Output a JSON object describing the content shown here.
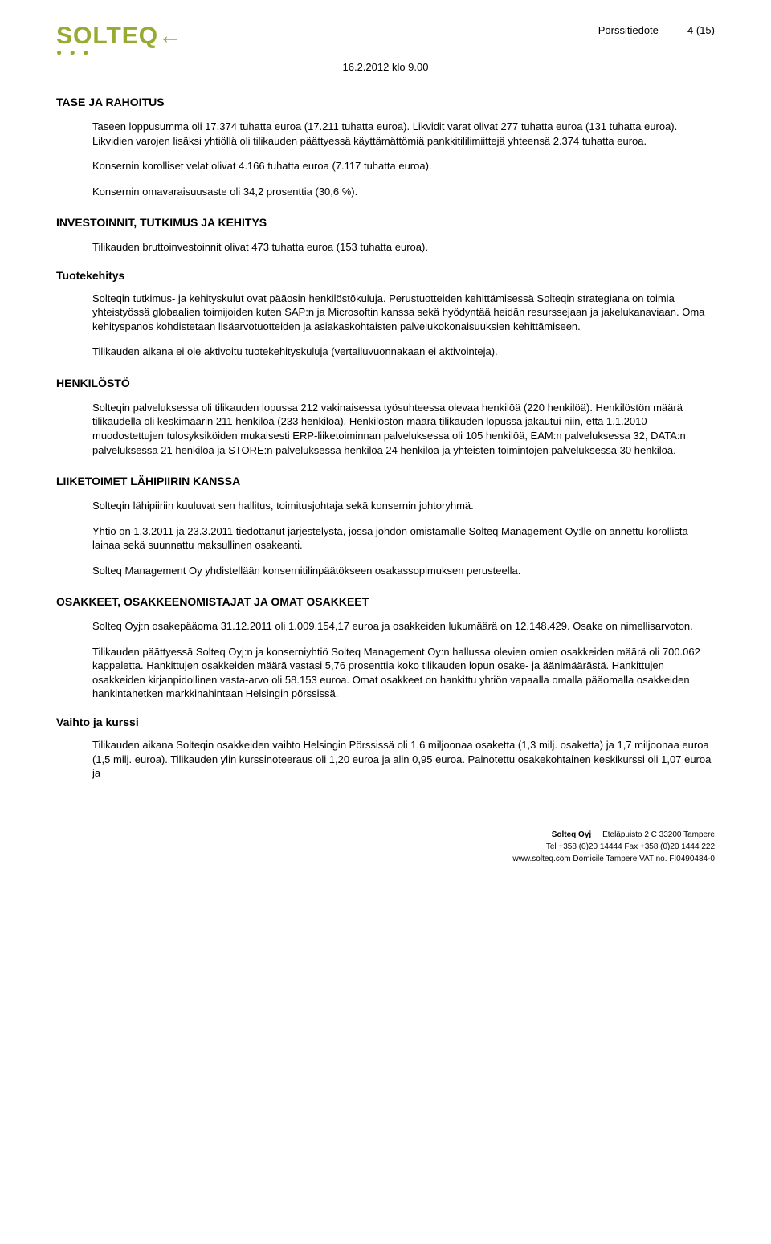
{
  "header": {
    "logo_text": "SOLTEQ",
    "logo_accent": "←",
    "doc_type": "Pörssitiedote",
    "page_num": "4 (15)",
    "datetime": "16.2.2012 klo 9.00"
  },
  "sections": {
    "tase": {
      "heading": "TASE JA RAHOITUS",
      "p1": "Taseen loppusumma oli 17.374 tuhatta euroa (17.211 tuhatta euroa). Likvidit varat olivat 277 tuhatta euroa (131 tuhatta euroa). Likvidien varojen lisäksi yhtiöllä oli tilikauden päättyessä käyttämättömiä pankkitililimiittejä yhteensä 2.374 tuhatta euroa.",
      "p2": "Konsernin korolliset velat olivat 4.166 tuhatta euroa (7.117 tuhatta euroa).",
      "p3": "Konsernin omavaraisuusaste oli 34,2 prosenttia (30,6 %)."
    },
    "investoinnit": {
      "heading": "INVESTOINNIT, TUTKIMUS JA KEHITYS",
      "p1": "Tilikauden bruttoinvestoinnit olivat 473 tuhatta euroa (153 tuhatta euroa)."
    },
    "tuotekehitys": {
      "heading": "Tuotekehitys",
      "p1": "Solteqin tutkimus- ja kehityskulut ovat pääosin henkilöstökuluja. Perustuotteiden kehittämisessä Solteqin strategiana on toimia yhteistyössä globaalien toimijoiden kuten SAP:n ja Microsoftin kanssa sekä hyödyntää heidän resurssejaan ja jakelukanaviaan. Oma kehityspanos kohdistetaan lisäarvotuotteiden ja asiakaskohtaisten palvelukokonaisuuksien kehittämiseen.",
      "p2": "Tilikauden aikana ei ole aktivoitu tuotekehityskuluja (vertailuvuonnakaan ei aktivointeja)."
    },
    "henkilosto": {
      "heading": "HENKILÖSTÖ",
      "p1": "Solteqin palveluksessa oli tilikauden lopussa 212 vakinaisessa työsuhteessa olevaa henkilöä (220 henkilöä). Henkilöstön määrä tilikaudella oli keskimäärin 211 henkilöä (233 henkilöä). Henkilöstön määrä tilikauden lopussa jakautui niin, että 1.1.2010 muodostettujen tulosyksiköiden mukaisesti ERP-liiketoiminnan palveluksessa oli 105 henkilöä, EAM:n palveluksessa 32, DATA:n palveluksessa 21 henkilöä ja STORE:n palveluksessa henkilöä 24 henkilöä ja yhteisten toimintojen palveluksessa 30 henkilöä."
    },
    "liiketoimet": {
      "heading": "LIIKETOIMET LÄHIPIIRIN KANSSA",
      "p1": "Solteqin lähipiiriin kuuluvat sen hallitus, toimitusjohtaja sekä konsernin johtoryhmä.",
      "p2": "Yhtiö on 1.3.2011 ja 23.3.2011 tiedottanut järjestelystä, jossa johdon omistamalle Solteq Management Oy:lle on annettu korollista lainaa sekä suunnattu maksullinen osakeanti.",
      "p3": "Solteq Management Oy yhdistellään konsernitilinpäätökseen osakassopimuksen perusteella."
    },
    "osakkeet": {
      "heading": "OSAKKEET, OSAKKEENOMISTAJAT JA OMAT OSAKKEET",
      "p1": "Solteq Oyj:n osakepääoma 31.12.2011 oli 1.009.154,17 euroa ja osakkeiden lukumäärä on 12.148.429. Osake on nimellisarvoton.",
      "p2": "Tilikauden päättyessä Solteq Oyj:n ja konserniyhtiö Solteq Management Oy:n hallussa olevien omien osakkeiden määrä oli 700.062 kappaletta. Hankittujen osakkeiden määrä vastasi 5,76 prosenttia koko tilikauden lopun osake- ja äänimäärästä. Hankittujen osakkeiden kirjanpidollinen vasta-arvo oli 58.153 euroa. Omat osakkeet on hankittu yhtiön vapaalla omalla pääomalla osakkeiden hankintahetken markkinahintaan Helsingin pörssissä."
    },
    "vaihto": {
      "heading": "Vaihto ja kurssi",
      "p1": "Tilikauden aikana Solteqin osakkeiden vaihto Helsingin Pörssissä oli 1,6 miljoonaa osaketta (1,3 milj. osaketta) ja 1,7 miljoonaa euroa (1,5 milj. euroa). Tilikauden ylin kurssinoteeraus oli 1,20 euroa ja alin 0,95 euroa. Painotettu osakekohtainen keskikurssi oli 1,07 euroa ja"
    }
  },
  "footer": {
    "line1_left": "Solteq Oyj",
    "line1_right": "Eteläpuisto 2 C   33200 Tampere",
    "line2": "Tel +358 (0)20 14444   Fax +358 (0)20 1444 222",
    "line3": "www.solteq.com   Domicile Tampere   VAT no. FI0490484-0"
  }
}
